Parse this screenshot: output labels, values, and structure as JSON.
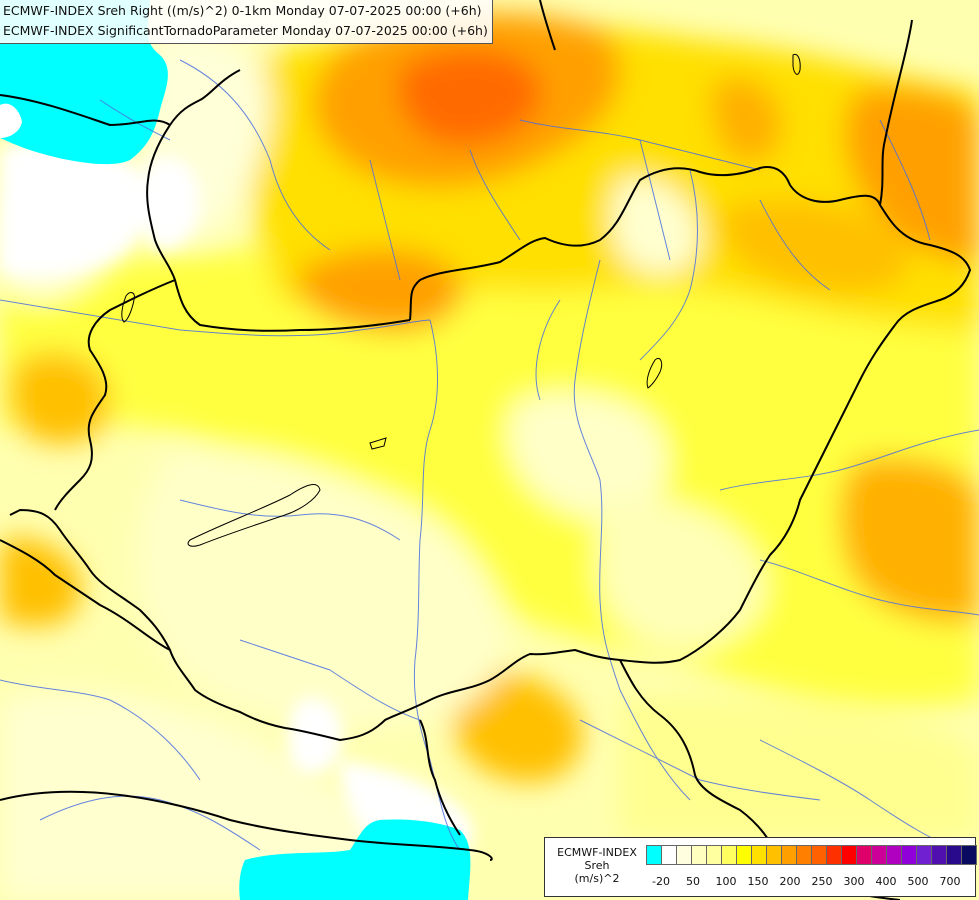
{
  "header": {
    "line1": "ECMWF-INDEX Sreh Right ((m/s)^2) 0-1km Monday 07-07-2025 00:00 (+6h)",
    "line2": "ECMWF-INDEX SignificantTornadoParameter Monday 07-07-2025 00:00 (+6h)"
  },
  "legend": {
    "title1": "ECMWF-INDEX",
    "title2": "Sreh",
    "title3": "(m/s)^2",
    "colors": [
      "#00ffff",
      "#ffffff",
      "#ffffe0",
      "#ffffc0",
      "#ffffa0",
      "#ffff60",
      "#ffff00",
      "#ffe000",
      "#ffc000",
      "#ffa000",
      "#ff8000",
      "#ff6000",
      "#ff3000",
      "#ff0000",
      "#e0006a",
      "#cc0099",
      "#b000c0",
      "#9000d8",
      "#7020d0",
      "#5010b0",
      "#2a0a8c",
      "#0a0a60"
    ],
    "ticks": [
      "-20",
      "50",
      "100",
      "150",
      "200",
      "250",
      "300",
      "400",
      "500",
      "700"
    ]
  },
  "colors": {
    "border": "#000000",
    "river": "#4a6ee0"
  }
}
